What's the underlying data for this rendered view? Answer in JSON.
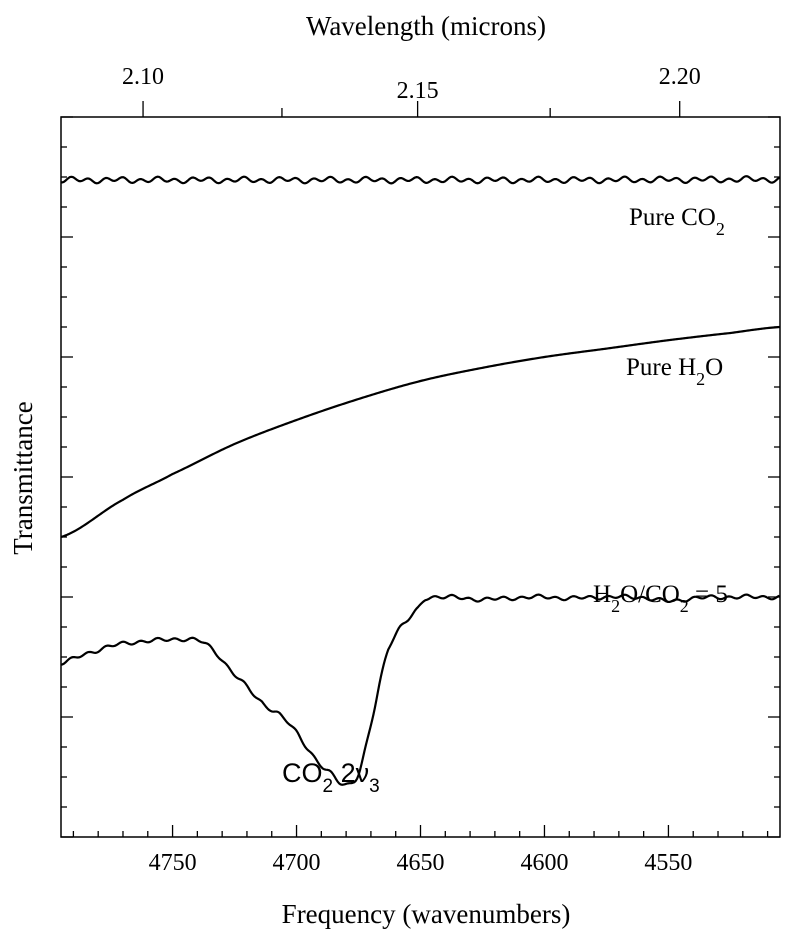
{
  "chart_data": {
    "type": "line",
    "title": "",
    "xlabel": "Frequency (wavenumbers)",
    "x2label": "Wavelength (microns)",
    "ylabel": "Transmittance",
    "xlim": [
      4795,
      4505
    ],
    "x_reversed": true,
    "x_ticks": [
      "4750",
      "4700",
      "4650",
      "4600",
      "4550"
    ],
    "x_tick_values": [
      4750,
      4700,
      4650,
      4600,
      4550
    ],
    "x2_ticks": [
      "2.10",
      "2.15",
      "2.20"
    ],
    "x2_tick_values": [
      2.1,
      2.15,
      2.2
    ],
    "ylim": [
      0,
      12
    ],
    "y_tick_labels_shown": false,
    "grid": false,
    "series": [
      {
        "label": "Pure CO",
        "label_sub": "2",
        "x": [
          4795,
          4705,
          4600,
          4505
        ],
        "y": [
          10.95,
          10.95,
          10.95,
          10.96
        ],
        "ripple": 0.035
      },
      {
        "label": "Pure H",
        "label_sub": "2",
        "label_tail": "O",
        "x": [
          4795,
          4770,
          4750,
          4725,
          4700,
          4675,
          4650,
          4625,
          4600,
          4575,
          4550,
          4525,
          4505
        ],
        "y": [
          5.0,
          5.62,
          6.05,
          6.55,
          6.95,
          7.3,
          7.6,
          7.82,
          8.0,
          8.14,
          8.28,
          8.4,
          8.5
        ]
      },
      {
        "label": "H",
        "label_sub": "2",
        "label_mid": "O/CO",
        "label_sub2": "2",
        "label_tail": " = 5",
        "x": [
          4795,
          4785,
          4775,
          4765,
          4755,
          4745,
          4738,
          4732,
          4726,
          4720,
          4714,
          4710,
          4706,
          4700,
          4695,
          4690,
          4686,
          4682,
          4678,
          4675,
          4672,
          4669,
          4666,
          4663,
          4659,
          4655,
          4651,
          4648,
          4640,
          4625,
          4610,
          4600,
          4590,
          4575,
          4560,
          4550,
          4540,
          4525,
          4515,
          4505
        ],
        "y": [
          2.9,
          3.05,
          3.18,
          3.25,
          3.28,
          3.3,
          3.25,
          3.05,
          2.75,
          2.5,
          2.25,
          2.12,
          2.0,
          1.75,
          1.45,
          1.18,
          1.05,
          0.9,
          0.9,
          1.05,
          1.5,
          2.05,
          2.65,
          3.15,
          3.45,
          3.62,
          3.8,
          3.98,
          4.0,
          3.96,
          3.99,
          4.0,
          3.98,
          4.0,
          3.99,
          3.93,
          3.98,
          4.0,
          4.0,
          4.0
        ],
        "ripple": 0.025
      }
    ],
    "annotations": [
      {
        "text": "CO",
        "sub": "2",
        "text2": " 2ν",
        "sub2": "3",
        "x": 4680,
        "y": 0.0
      }
    ]
  }
}
